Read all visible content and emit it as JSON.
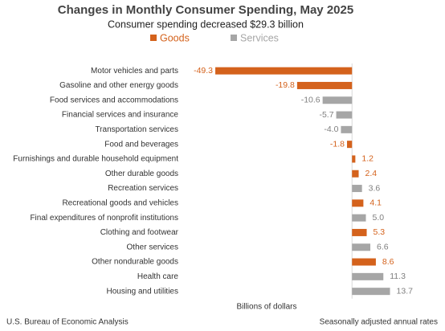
{
  "chart_data": {
    "type": "hbar",
    "title": "Changes in Monthly Consumer Spending, May 2025",
    "subtitle": "Consumer spending decreased $29.3 billion",
    "categories": [
      "Motor vehicles and parts",
      "Gasoline and other energy goods",
      "Food services and accommodations",
      "Financial services and insurance",
      "Transportation services",
      "Food and beverages",
      "Furnishings and durable household equipment",
      "Other durable goods",
      "Recreation services",
      "Recreational goods and vehicles",
      "Final expenditures of nonprofit institutions",
      "Clothing and footwear",
      "Other services",
      "Other nondurable goods",
      "Health care",
      "Housing and utilities"
    ],
    "series": [
      {
        "name": "Goods",
        "color": "#d4621c",
        "values": [
          -49.3,
          -19.8,
          null,
          null,
          null,
          -1.8,
          1.2,
          2.4,
          null,
          4.1,
          null,
          5.3,
          null,
          8.6,
          null,
          null
        ],
        "value_labels": [
          "-49.3",
          "-19.8",
          null,
          null,
          null,
          "-1.8",
          "1.2",
          "2.4",
          null,
          "4.1",
          null,
          "5.3",
          null,
          "8.6",
          null,
          null
        ]
      },
      {
        "name": "Services",
        "color": "#a6a6a6",
        "values": [
          null,
          null,
          -10.6,
          -5.7,
          -4.0,
          null,
          null,
          null,
          3.6,
          null,
          5.0,
          null,
          6.6,
          null,
          11.3,
          13.7
        ],
        "value_labels": [
          null,
          null,
          "-10.6",
          "-5.7",
          "-4.0",
          null,
          null,
          null,
          "3.6",
          null,
          "5.0",
          null,
          "6.6",
          null,
          "11.3",
          "13.7"
        ]
      }
    ],
    "xlim": [
      -58,
      26
    ],
    "xlabel": "Billions of dollars",
    "source": "U.S. Bureau of Economic Analysis",
    "note": "Seasonally adjusted annual rates"
  }
}
